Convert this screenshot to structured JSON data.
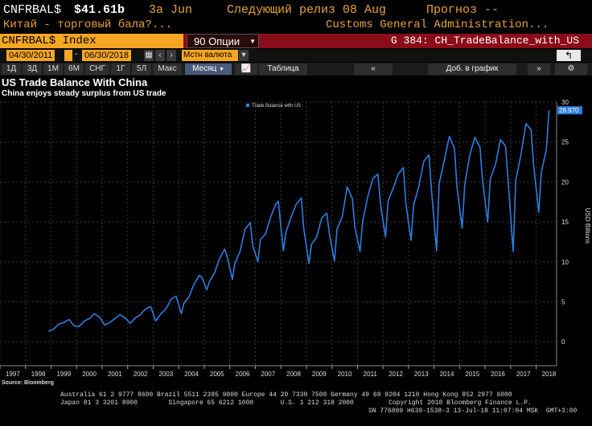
{
  "header": {
    "ticker": "CNFRBAL$",
    "value": "$41.61b",
    "period": "3a Jun",
    "next_release": "Следующий релиз 08 Aug",
    "forecast": "Прогноз --",
    "description": "Китай - торговый бала?...",
    "source_agency": "Customs General Administration..."
  },
  "security_bar": {
    "ticker_label": "CNFRBAL$ Index",
    "options_label": "90 Опции",
    "graph_label": "G 384: CH_TradeBalance_with_US"
  },
  "date_row": {
    "start_date": "04/30/2011",
    "end_date": "06/30/2018",
    "currency": "Мстн валюта",
    "back_icon": "back-arrow-icon"
  },
  "toolbar": {
    "periods": [
      "1Д",
      "3Д",
      "1М",
      "6М",
      "СНГ",
      "1Г",
      "5Л",
      "Макс"
    ],
    "frequency": "Месяц",
    "table_label": "Таблица",
    "add_label": "Доб. в график",
    "colors": {
      "accent": "#f5a623",
      "bar": "#8b0c19",
      "line": "#2f7de1"
    }
  },
  "chart_data": {
    "type": "line",
    "title": "US Trade Balance With China",
    "subtitle": "China enjoys steady surplus from US trade",
    "ylabel": "USD Billions",
    "ylim": [
      -3,
      30
    ],
    "yticks": [
      0,
      5,
      10,
      15,
      20,
      25,
      30
    ],
    "xlim": [
      1997,
      2018.8
    ],
    "xticks": [
      "1997",
      "1998",
      "1999",
      "2000",
      "2001",
      "2002",
      "2003",
      "2004",
      "2005",
      "2006",
      "2007",
      "2008",
      "2009",
      "2010",
      "2011",
      "2012",
      "2013",
      "2014",
      "2015",
      "2016",
      "2017",
      "2018"
    ],
    "legend": "top-left",
    "last_value_label": "28.970",
    "series": [
      {
        "name": "Trade Balance with US",
        "color": "#2f7de1",
        "x": [
          1998.9,
          1999.1,
          1999.3,
          1999.5,
          1999.7,
          1999.9,
          2000.1,
          2000.3,
          2000.5,
          2000.7,
          2000.9,
          2001.1,
          2001.3,
          2001.5,
          2001.7,
          2001.9,
          2002.1,
          2002.3,
          2002.5,
          2002.7,
          2002.9,
          2003.1,
          2003.3,
          2003.5,
          2003.7,
          2003.9,
          2004.1,
          2004.2,
          2004.4,
          2004.6,
          2004.8,
          2004.9,
          2005.1,
          2005.2,
          2005.4,
          2005.6,
          2005.8,
          2005.9,
          2006.1,
          2006.2,
          2006.4,
          2006.6,
          2006.8,
          2006.9,
          2007.1,
          2007.2,
          2007.4,
          2007.6,
          2007.8,
          2007.9,
          2008.1,
          2008.2,
          2008.4,
          2008.6,
          2008.8,
          2008.9,
          2009.1,
          2009.2,
          2009.4,
          2009.6,
          2009.8,
          2009.9,
          2010.1,
          2010.2,
          2010.4,
          2010.6,
          2010.8,
          2010.9,
          2011.1,
          2011.2,
          2011.4,
          2011.6,
          2011.8,
          2011.9,
          2012.1,
          2012.2,
          2012.4,
          2012.6,
          2012.8,
          2012.9,
          2013.1,
          2013.2,
          2013.4,
          2013.6,
          2013.8,
          2013.9,
          2014.1,
          2014.2,
          2014.4,
          2014.6,
          2014.8,
          2014.9,
          2015.1,
          2015.2,
          2015.4,
          2015.6,
          2015.8,
          2015.9,
          2016.1,
          2016.2,
          2016.4,
          2016.6,
          2016.8,
          2016.9,
          2017.1,
          2017.2,
          2017.4,
          2017.6,
          2017.8,
          2017.9,
          2018.1,
          2018.2,
          2018.4,
          2018.5
        ],
        "values": [
          1.3,
          1.6,
          2.2,
          2.4,
          2.8,
          2.0,
          1.9,
          2.6,
          2.9,
          3.5,
          3.1,
          2.1,
          2.4,
          2.9,
          3.4,
          3.0,
          2.3,
          3.0,
          3.4,
          4.1,
          4.4,
          2.6,
          3.5,
          4.1,
          5.3,
          5.7,
          3.5,
          4.8,
          5.6,
          7.2,
          8.3,
          8.1,
          6.5,
          7.5,
          8.6,
          10.4,
          11.6,
          10.6,
          7.8,
          9.8,
          11.3,
          14.1,
          14.9,
          12.0,
          10.0,
          12.8,
          13.5,
          15.6,
          17.2,
          17.6,
          11.4,
          13.7,
          15.6,
          17.2,
          18.0,
          14.1,
          9.8,
          12.2,
          13.1,
          15.5,
          16.1,
          13.5,
          10.1,
          14.1,
          15.6,
          19.4,
          17.9,
          14.3,
          11.3,
          15.0,
          18.1,
          20.4,
          21.0,
          17.3,
          13.1,
          17.6,
          19.2,
          21.0,
          21.8,
          17.2,
          12.7,
          17.1,
          19.4,
          22.6,
          23.4,
          18.9,
          11.4,
          19.8,
          22.7,
          25.7,
          24.2,
          19.3,
          14.2,
          19.6,
          23.4,
          25.6,
          24.3,
          20.2,
          15.0,
          20.4,
          22.1,
          25.3,
          24.5,
          20.2,
          11.3,
          20.2,
          23.4,
          27.3,
          26.5,
          22.1,
          16.2,
          21.2,
          24.1,
          28.97
        ]
      }
    ]
  },
  "source_text": "Source: Bloomberg",
  "footer": {
    "line1": "Australia 61 2 9777 8600 Brazil 5511 2395 9000 Europe 44 20 7330 7500 Germany 49 69 9204 1210 Hong Kong 852 2977 6000",
    "line2": "Japan 81 3 3201 8900        Singapore 65 6212 1000       U.S. 1 212 318 2000         Copyright 2018 Bloomberg Finance L.P.",
    "line3": "SN 776809 H639-1538-3 13-Jul-18 11:07:04 MSK  GMT+3:00"
  }
}
